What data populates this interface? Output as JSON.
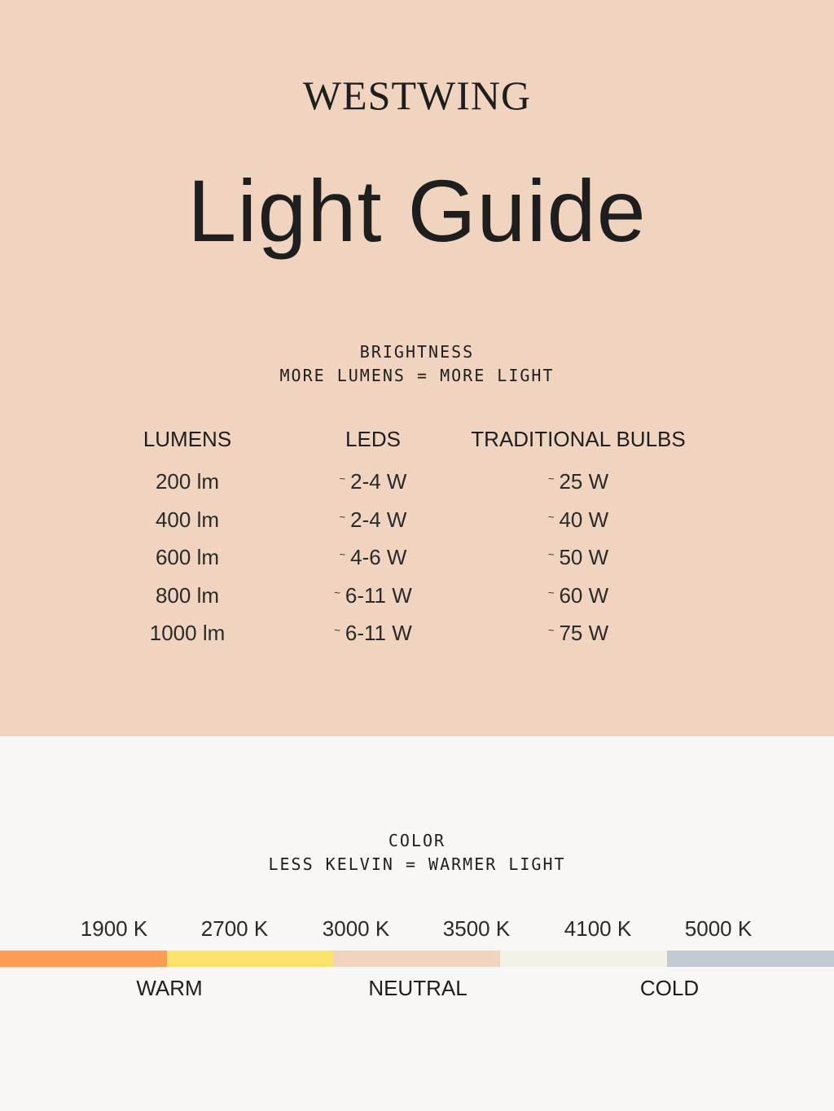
{
  "brand": "WESTWING",
  "title": "Light Guide",
  "brightness": {
    "heading": "BRIGHTNESS",
    "subheading": "MORE LUMENS = MORE LIGHT",
    "columns": [
      "LUMENS",
      "LEDS",
      "TRADITIONAL BULBS"
    ],
    "tilde": "~",
    "rows": [
      [
        "200 lm",
        "2-4 W",
        "25 W"
      ],
      [
        "400 lm",
        "2-4 W",
        "40 W"
      ],
      [
        "600 lm",
        "4-6 W",
        "50 W"
      ],
      [
        "800 lm",
        "6-11 W",
        "60 W"
      ],
      [
        "1000 lm",
        "6-11 W",
        "75 W"
      ]
    ]
  },
  "color": {
    "heading": "COLOR",
    "subheading": "LESS KELVIN = WARMER LIGHT",
    "kelvins": [
      "1900 K",
      "2700 K",
      "3000 K",
      "3500 K",
      "4100 K",
      "5000 K"
    ],
    "swatches": [
      "#fd9c55",
      "#fae26c",
      "#f0d4bf",
      "#f3f0e6",
      "#c3c9d2"
    ],
    "labels": [
      "WARM",
      "NEUTRAL",
      "COLD"
    ]
  }
}
